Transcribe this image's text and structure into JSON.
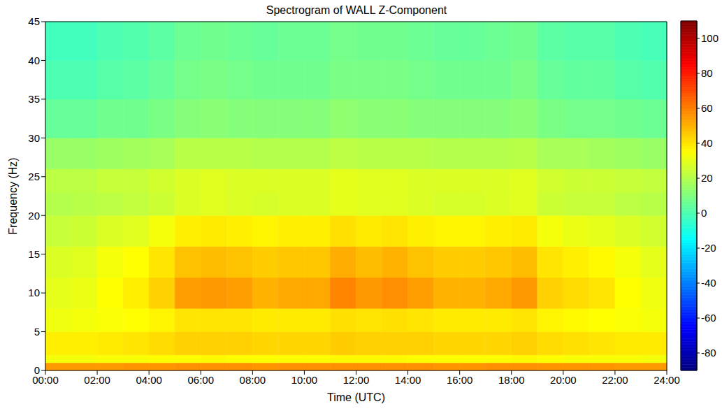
{
  "chart_data": {
    "type": "heatmap",
    "title": "Spectrogram of WALL Z-Component",
    "x_label": "Time (UTC)",
    "y_label": "Frequency (Hz)",
    "xlim": [
      0,
      24
    ],
    "xticks": [
      {
        "value": 0,
        "label": "00:00"
      },
      {
        "value": 2,
        "label": "02:00"
      },
      {
        "value": 4,
        "label": "04:00"
      },
      {
        "value": 6,
        "label": "06:00"
      },
      {
        "value": 8,
        "label": "08:00"
      },
      {
        "value": 10,
        "label": "10:00"
      },
      {
        "value": 12,
        "label": "12:00"
      },
      {
        "value": 14,
        "label": "14:00"
      },
      {
        "value": 16,
        "label": "16:00"
      },
      {
        "value": 18,
        "label": "18:00"
      },
      {
        "value": 20,
        "label": "20:00"
      },
      {
        "value": 22,
        "label": "22:00"
      },
      {
        "value": 24,
        "label": "24:00"
      }
    ],
    "ylim": [
      0,
      45
    ],
    "yticks": [
      0,
      5,
      10,
      15,
      20,
      25,
      30,
      35,
      40,
      45
    ],
    "x_edges": [
      0,
      1,
      2,
      3,
      4,
      5,
      6,
      7,
      8,
      9,
      10,
      11,
      12,
      13,
      14,
      15,
      16,
      17,
      18,
      19,
      20,
      21,
      22,
      23,
      24
    ],
    "y_edges": [
      0,
      1,
      2,
      5,
      8,
      12,
      16,
      20,
      23,
      26,
      30,
      35,
      40,
      45
    ],
    "values": [
      [
        55,
        55,
        55,
        56,
        56,
        57,
        57,
        57,
        56,
        57,
        57,
        57,
        57,
        57,
        57,
        56,
        56,
        57,
        57,
        56,
        56,
        56,
        55,
        55
      ],
      [
        33,
        33,
        34,
        34,
        35,
        35,
        36,
        35,
        35,
        35,
        35,
        36,
        36,
        36,
        35,
        35,
        35,
        35,
        36,
        35,
        34,
        34,
        34,
        33
      ],
      [
        38,
        38,
        39,
        40,
        42,
        44,
        44,
        44,
        43,
        43,
        43,
        45,
        44,
        44,
        44,
        43,
        43,
        43,
        44,
        42,
        41,
        40,
        39,
        39
      ],
      [
        32,
        33,
        34,
        35,
        37,
        40,
        40,
        40,
        39,
        39,
        39,
        41,
        40,
        41,
        40,
        39,
        39,
        39,
        40,
        37,
        36,
        35,
        34,
        33
      ],
      [
        30,
        31,
        35,
        38,
        44,
        54,
        55,
        54,
        50,
        52,
        52,
        59,
        55,
        57,
        54,
        50,
        50,
        52,
        55,
        44,
        42,
        40,
        35,
        32
      ],
      [
        28,
        29,
        33,
        35,
        40,
        47,
        48,
        47,
        45,
        46,
        46,
        51,
        48,
        50,
        47,
        45,
        45,
        46,
        48,
        40,
        38,
        36,
        33,
        30
      ],
      [
        24,
        25,
        28,
        29,
        33,
        38,
        39,
        38,
        37,
        38,
        38,
        41,
        39,
        40,
        38,
        37,
        37,
        38,
        39,
        33,
        31,
        30,
        28,
        26
      ],
      [
        20,
        21,
        22,
        23,
        25,
        28,
        29,
        28,
        27,
        28,
        28,
        30,
        29,
        29,
        28,
        27,
        27,
        28,
        29,
        25,
        24,
        24,
        22,
        21
      ],
      [
        22,
        22,
        24,
        24,
        26,
        28,
        29,
        28,
        28,
        28,
        28,
        30,
        29,
        29,
        28,
        28,
        28,
        28,
        29,
        26,
        25,
        25,
        24,
        23
      ],
      [
        15,
        15,
        16,
        17,
        18,
        21,
        21,
        21,
        20,
        20,
        20,
        22,
        21,
        21,
        21,
        20,
        20,
        20,
        21,
        18,
        18,
        17,
        16,
        15
      ],
      [
        5,
        5,
        7,
        7,
        9,
        11,
        12,
        11,
        11,
        11,
        11,
        13,
        12,
        12,
        11,
        11,
        11,
        11,
        12,
        9,
        8,
        8,
        7,
        6
      ],
      [
        0,
        0,
        2,
        3,
        5,
        8,
        9,
        8,
        7,
        7,
        7,
        9,
        9,
        9,
        8,
        7,
        7,
        7,
        9,
        5,
        4,
        4,
        2,
        1
      ],
      [
        -2,
        -2,
        0,
        1,
        3,
        6,
        7,
        6,
        5,
        6,
        6,
        8,
        7,
        7,
        6,
        5,
        5,
        6,
        7,
        3,
        2,
        2,
        0,
        -1
      ]
    ],
    "colorbar": {
      "lim": [
        -90,
        110
      ],
      "ticks": [
        -80,
        -60,
        -40,
        -20,
        0,
        20,
        40,
        60,
        80,
        100
      ]
    }
  }
}
